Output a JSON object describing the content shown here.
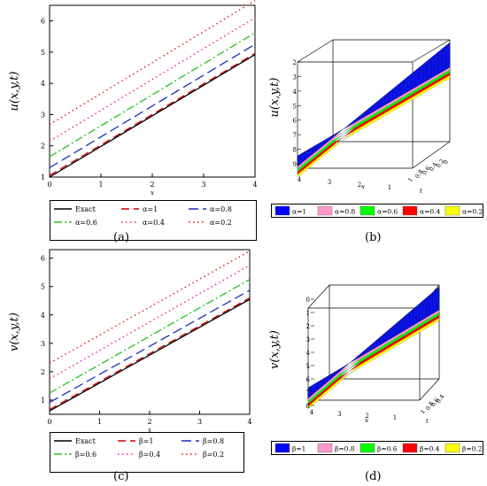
{
  "chart_data": [
    {
      "type": "line",
      "panel_label": "a",
      "ylabel": "u(x,y,t)",
      "xlabel": "x",
      "xlim": [
        0,
        4
      ],
      "ylim": [
        1,
        6.5
      ],
      "x_ticks": [
        0,
        1,
        2,
        3,
        4
      ],
      "y_ticks": [
        1,
        2,
        3,
        4,
        5,
        6
      ],
      "grid": false,
      "series": [
        {
          "name": "Exact",
          "color": "#000000",
          "dash": "solid",
          "x": [
            0,
            4
          ],
          "y": [
            1.0,
            4.92
          ]
        },
        {
          "name": "α=1",
          "color": "#cc0000",
          "dash": "longdash",
          "x": [
            0,
            4
          ],
          "y": [
            1.05,
            4.96
          ]
        },
        {
          "name": "α=0.8",
          "color": "#1a2fbf",
          "dash": "dash",
          "x": [
            0,
            4
          ],
          "y": [
            1.3,
            5.25
          ]
        },
        {
          "name": "α=0.6",
          "color": "#21c321",
          "dash": "dashdot",
          "x": [
            0,
            4
          ],
          "y": [
            1.65,
            5.62
          ]
        },
        {
          "name": "α=0.4",
          "color": "#e61ea0",
          "dash": "dot",
          "x": [
            0,
            4
          ],
          "y": [
            2.15,
            6.1
          ]
        },
        {
          "name": "α=0.2",
          "color": "#d21e1e",
          "dash": "dot",
          "x": [
            0,
            4
          ],
          "y": [
            2.68,
            6.65
          ]
        }
      ],
      "legend_placement": "bottom"
    },
    {
      "type": "surface",
      "panel_label": "b",
      "ylabel": "u(x,y,t)",
      "axis_labels": {
        "x": "x",
        "t": "t"
      },
      "x_ticks": [
        4,
        3,
        2,
        1
      ],
      "t_ticks": [
        1,
        0.8,
        0.6,
        0.4,
        0.2,
        0
      ],
      "z_ticks": [
        2,
        3,
        4,
        5,
        6,
        7,
        8,
        9
      ],
      "legend": [
        {
          "name": "α=1",
          "color": "#0000ff"
        },
        {
          "name": "α=0.8",
          "color": "#ff99cc"
        },
        {
          "name": "α=0.6",
          "color": "#00ff00"
        },
        {
          "name": "α=0.4",
          "color": "#ff0000"
        },
        {
          "name": "α=0.2",
          "color": "#ffff00"
        }
      ],
      "legend_placement": "bottom"
    },
    {
      "type": "line",
      "panel_label": "c",
      "ylabel": "v(x,y,t)",
      "xlabel": "x",
      "xlim": [
        0,
        4
      ],
      "ylim": [
        0.5,
        6.3
      ],
      "x_ticks": [
        0,
        1,
        2,
        3,
        4
      ],
      "y_ticks": [
        1,
        2,
        3,
        4,
        5,
        6
      ],
      "grid": false,
      "series": [
        {
          "name": "Exact",
          "color": "#000000",
          "dash": "solid",
          "x": [
            0,
            4
          ],
          "y": [
            0.62,
            4.55
          ]
        },
        {
          "name": "β=1",
          "color": "#cc0000",
          "dash": "longdash",
          "x": [
            0,
            4
          ],
          "y": [
            0.67,
            4.6
          ]
        },
        {
          "name": "β=0.8",
          "color": "#1a2fbf",
          "dash": "dash",
          "x": [
            0,
            4
          ],
          "y": [
            0.92,
            4.87
          ]
        },
        {
          "name": "β=0.6",
          "color": "#21c321",
          "dash": "dashdot",
          "x": [
            0,
            4
          ],
          "y": [
            1.25,
            5.25
          ]
        },
        {
          "name": "β=0.4",
          "color": "#e61ea0",
          "dash": "dot",
          "x": [
            0,
            4
          ],
          "y": [
            1.75,
            5.75
          ]
        },
        {
          "name": "β=0.2",
          "color": "#d21e1e",
          "dash": "dot",
          "x": [
            0,
            4
          ],
          "y": [
            2.3,
            6.25
          ]
        }
      ],
      "legend_placement": "bottom"
    },
    {
      "type": "surface",
      "panel_label": "d",
      "ylabel": "v(x,y,t)",
      "axis_labels": {
        "x": "x",
        "t": "t"
      },
      "x_ticks": [
        4,
        3,
        2,
        1
      ],
      "t_ticks": [
        1,
        0.8,
        0.6,
        0.4
      ],
      "z_ticks": [
        0,
        1,
        2,
        3,
        4,
        5,
        6,
        7,
        8
      ],
      "legend": [
        {
          "name": "β=1",
          "color": "#0000ff"
        },
        {
          "name": "β=0.8",
          "color": "#ff99cc"
        },
        {
          "name": "β=0.6",
          "color": "#00ff00"
        },
        {
          "name": "β=0.4",
          "color": "#ff0000"
        },
        {
          "name": "β=0.2",
          "color": "#ffff00"
        }
      ],
      "legend_placement": "bottom"
    }
  ],
  "captions": {
    "a": "(a)",
    "b": "(b)",
    "c": "(c)",
    "d": "(d)"
  }
}
